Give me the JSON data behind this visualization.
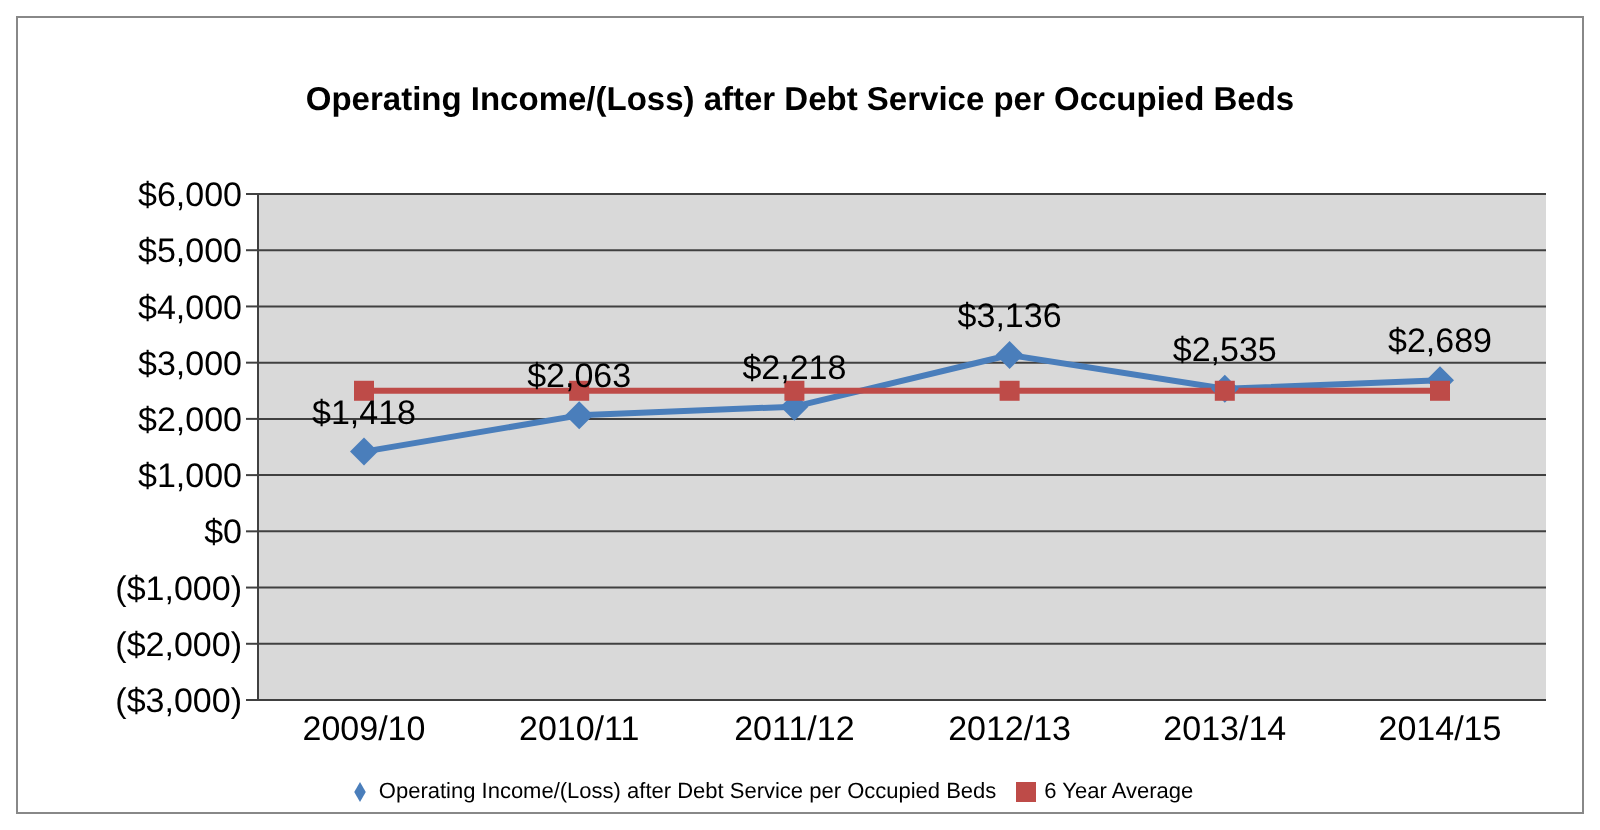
{
  "chart_data": {
    "type": "line",
    "title": "Operating Income/(Loss) after Debt Service per Occupied Beds",
    "categories": [
      "2009/10",
      "2010/11",
      "2011/12",
      "2012/13",
      "2013/14",
      "2014/15"
    ],
    "series": [
      {
        "name": "Operating Income/(Loss)  after Debt Service per Occupied Beds",
        "color": "#4a7ebb",
        "marker": "diamond",
        "values": [
          1418,
          2063,
          2218,
          3136,
          2535,
          2689
        ],
        "value_labels": [
          "$1,418",
          "$2,063",
          "$2,218",
          "$3,136",
          "$2,535",
          "$2,689"
        ]
      },
      {
        "name": "6 Year Average",
        "color": "#be4b48",
        "marker": "square",
        "values": [
          2500,
          2500,
          2500,
          2500,
          2500,
          2500
        ]
      }
    ],
    "ylim": [
      -3000,
      6000
    ],
    "yticks": [
      {
        "value": -3000,
        "label": "($3,000)"
      },
      {
        "value": -2000,
        "label": "($2,000)"
      },
      {
        "value": -1000,
        "label": "($1,000)"
      },
      {
        "value": 0,
        "label": "$0"
      },
      {
        "value": 1000,
        "label": "$1,000"
      },
      {
        "value": 2000,
        "label": "$2,000"
      },
      {
        "value": 3000,
        "label": "$3,000"
      },
      {
        "value": 4000,
        "label": "$4,000"
      },
      {
        "value": 5000,
        "label": "$5,000"
      },
      {
        "value": 6000,
        "label": "$6,000"
      }
    ],
    "grid": "y",
    "legend": "bottom"
  }
}
